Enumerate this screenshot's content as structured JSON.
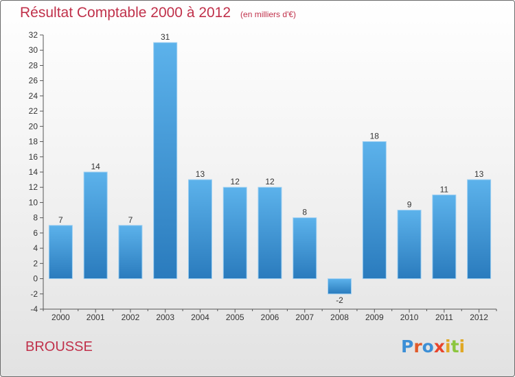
{
  "header": {
    "title": "Résultat Comptable 2000 à 2012",
    "subtitle": "(en milliers d'€)"
  },
  "footer": {
    "location": "BROUSSE",
    "logo": "Proxiti"
  },
  "colors": {
    "title": "#c0304a",
    "bar_top": "#5cb2eb",
    "bar_bottom": "#2a7bbd",
    "logo_letters": [
      "#3c8fd6",
      "#e05a2a",
      "#3c8fd6",
      "#e8452c",
      "#e0a825",
      "#8cc63f",
      "#e0a825"
    ]
  },
  "chart_data": {
    "type": "bar",
    "title": "Résultat Comptable 2000 à 2012",
    "subtitle": "(en milliers d'€)",
    "categories": [
      "2000",
      "2001",
      "2002",
      "2003",
      "2004",
      "2005",
      "2006",
      "2007",
      "2008",
      "2009",
      "2010",
      "2011",
      "2012"
    ],
    "values": [
      7,
      14,
      7,
      31,
      13,
      12,
      12,
      8,
      -2,
      18,
      9,
      11,
      13
    ],
    "ylim": [
      -4,
      32
    ],
    "yticks": [
      -4,
      -2,
      0,
      2,
      4,
      6,
      8,
      10,
      12,
      14,
      16,
      18,
      20,
      22,
      24,
      26,
      28,
      30,
      32
    ],
    "grid": false,
    "legend": "none"
  }
}
